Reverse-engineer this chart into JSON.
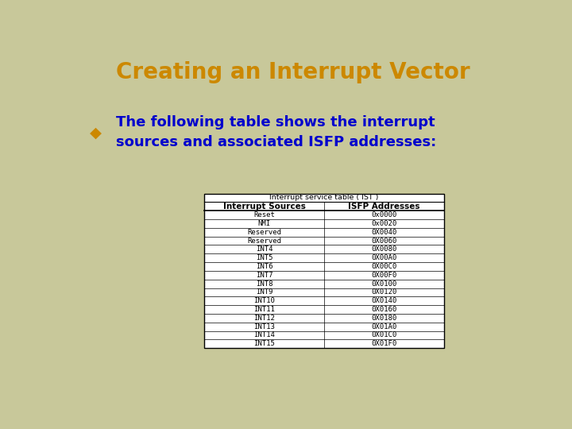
{
  "title": "Creating an Interrupt Vector",
  "title_color": "#CC8800",
  "title_fontsize": 20,
  "bullet_color": "#CC8800",
  "bullet_text_color": "#0000CC",
  "bullet_text": "The following table shows the interrupt\nsources and associated ISFP addresses:",
  "bullet_fontsize": 13,
  "bg_color": "#C8C89A",
  "table_title": "Interrupt service table ( IST )",
  "col_headers": [
    "Interrupt Sources",
    "ISFP Addresses"
  ],
  "rows": [
    [
      "Reset",
      "0x0000"
    ],
    [
      "NMI",
      "0x0020"
    ],
    [
      "Reserved",
      "0X0040"
    ],
    [
      "Reserved",
      "0X0060"
    ],
    [
      "INT4",
      "0X0080"
    ],
    [
      "INT5",
      "0X00A0"
    ],
    [
      "INT6",
      "0X00C0"
    ],
    [
      "INT7",
      "0X00F0"
    ],
    [
      "INT8",
      "0X0100"
    ],
    [
      "INT9",
      "0X0120"
    ],
    [
      "INT10",
      "0X0140"
    ],
    [
      "INT11",
      "0X0160"
    ],
    [
      "INT12",
      "0X0180"
    ],
    [
      "INT13",
      "0X01A0"
    ],
    [
      "INT14",
      "0X01C0"
    ],
    [
      "INT15",
      "0X01F0"
    ]
  ],
  "table_font": "monospace",
  "table_fontsize": 6.5,
  "header_fontsize": 7.5,
  "table_title_fontsize": 6.8
}
